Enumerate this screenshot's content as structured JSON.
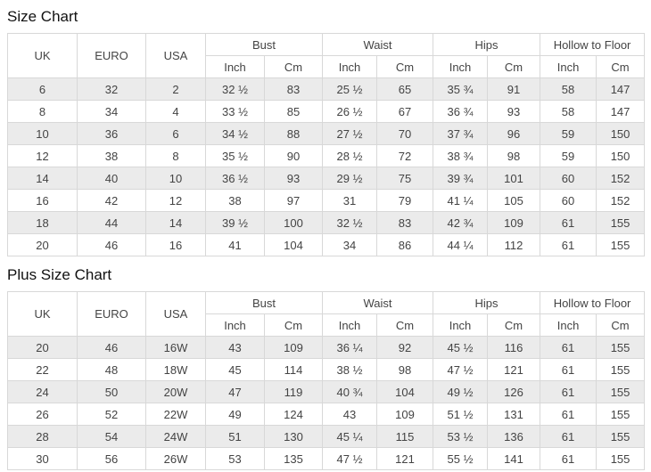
{
  "colors": {
    "stripe_row": "#ebebeb",
    "plain_row": "#ffffff",
    "border": "#d8d8d8",
    "cell_text": "#444444",
    "title_text": "#111111",
    "background": "#ffffff"
  },
  "chart_data": [
    {
      "type": "table",
      "title": "Size Chart",
      "size_headers": [
        "UK",
        "EURO",
        "USA"
      ],
      "group_headers": [
        "Bust",
        "Waist",
        "Hips",
        "Hollow to Floor"
      ],
      "unit_headers": [
        "Inch",
        "Cm",
        "Inch",
        "Cm",
        "Inch",
        "Cm",
        "Inch",
        "Cm"
      ],
      "rows": [
        [
          "6",
          "32",
          "2",
          "32 ½",
          "83",
          "25 ½",
          "65",
          "35 ¾",
          "91",
          "58",
          "147"
        ],
        [
          "8",
          "34",
          "4",
          "33 ½",
          "85",
          "26 ½",
          "67",
          "36 ¾",
          "93",
          "58",
          "147"
        ],
        [
          "10",
          "36",
          "6",
          "34 ½",
          "88",
          "27 ½",
          "70",
          "37 ¾",
          "96",
          "59",
          "150"
        ],
        [
          "12",
          "38",
          "8",
          "35 ½",
          "90",
          "28 ½",
          "72",
          "38 ¾",
          "98",
          "59",
          "150"
        ],
        [
          "14",
          "40",
          "10",
          "36 ½",
          "93",
          "29 ½",
          "75",
          "39 ¾",
          "101",
          "60",
          "152"
        ],
        [
          "16",
          "42",
          "12",
          "38",
          "97",
          "31",
          "79",
          "41 ¼",
          "105",
          "60",
          "152"
        ],
        [
          "18",
          "44",
          "14",
          "39 ½",
          "100",
          "32 ½",
          "83",
          "42 ¾",
          "109",
          "61",
          "155"
        ],
        [
          "20",
          "46",
          "16",
          "41",
          "104",
          "34",
          "86",
          "44 ¼",
          "112",
          "61",
          "155"
        ]
      ]
    },
    {
      "type": "table",
      "title": "Plus Size Chart",
      "size_headers": [
        "UK",
        "EURO",
        "USA"
      ],
      "group_headers": [
        "Bust",
        "Waist",
        "Hips",
        "Hollow to Floor"
      ],
      "unit_headers": [
        "Inch",
        "Cm",
        "Inch",
        "Cm",
        "Inch",
        "Cm",
        "Inch",
        "Cm"
      ],
      "rows": [
        [
          "20",
          "46",
          "16W",
          "43",
          "109",
          "36 ¼",
          "92",
          "45 ½",
          "116",
          "61",
          "155"
        ],
        [
          "22",
          "48",
          "18W",
          "45",
          "114",
          "38 ½",
          "98",
          "47 ½",
          "121",
          "61",
          "155"
        ],
        [
          "24",
          "50",
          "20W",
          "47",
          "119",
          "40 ¾",
          "104",
          "49 ½",
          "126",
          "61",
          "155"
        ],
        [
          "26",
          "52",
          "22W",
          "49",
          "124",
          "43",
          "109",
          "51 ½",
          "131",
          "61",
          "155"
        ],
        [
          "28",
          "54",
          "24W",
          "51",
          "130",
          "45 ¼",
          "115",
          "53 ½",
          "136",
          "61",
          "155"
        ],
        [
          "30",
          "56",
          "26W",
          "53",
          "135",
          "47 ½",
          "121",
          "55 ½",
          "141",
          "61",
          "155"
        ]
      ]
    }
  ]
}
